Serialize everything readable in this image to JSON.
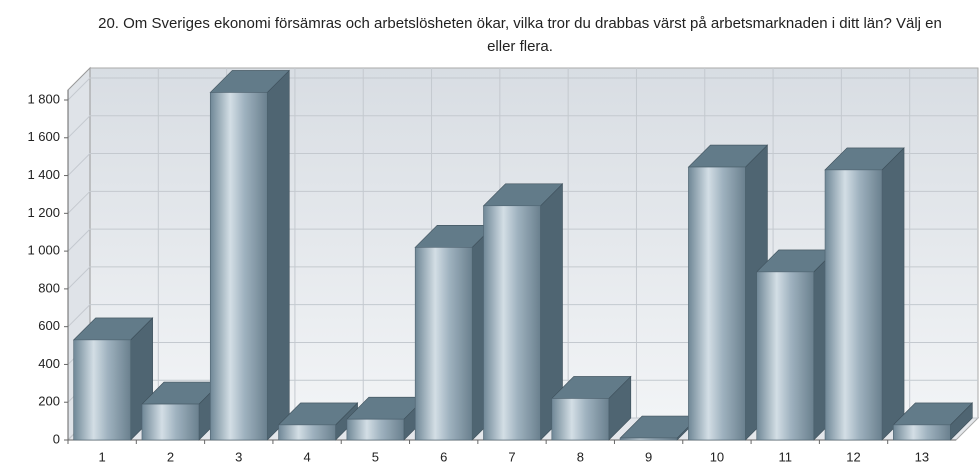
{
  "chart_data": {
    "type": "bar3d",
    "title": "20. Om Sveriges ekonomi försämras och arbetslösheten ökar, vilka tror du drabbas värst på arbetsmarknaden i ditt län? Välj en eller flera.",
    "categories": [
      "1",
      "2",
      "3",
      "4",
      "5",
      "6",
      "7",
      "8",
      "9",
      "10",
      "11",
      "12",
      "13"
    ],
    "values": [
      530,
      190,
      1840,
      80,
      110,
      1020,
      1240,
      220,
      10,
      1445,
      890,
      1430,
      80
    ],
    "color": "#8fa4b2",
    "ylim": [
      0,
      1800
    ],
    "yticks": [
      0,
      200,
      400,
      600,
      800,
      {
        "value": 1000,
        "label": "1 000"
      },
      {
        "value": 1200,
        "label": "1 200"
      },
      {
        "value": 1400,
        "label": "1 400"
      },
      {
        "value": 1600,
        "label": "1 600"
      },
      {
        "value": 1800,
        "label": "1 800"
      }
    ],
    "grid": true
  }
}
